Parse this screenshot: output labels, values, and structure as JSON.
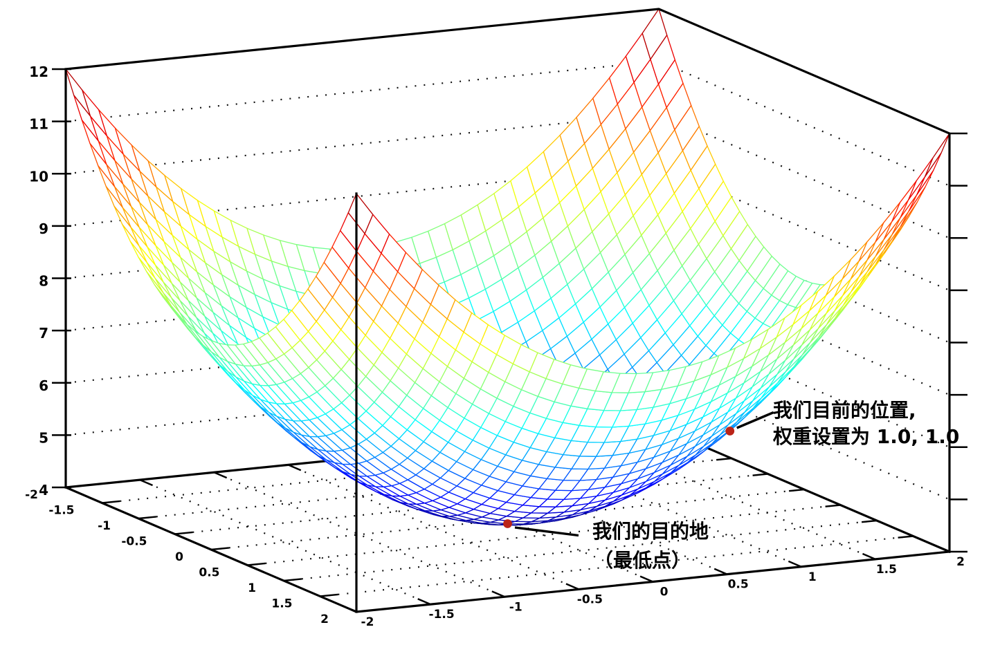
{
  "figure": {
    "background": "#ffffff"
  },
  "chart_data": {
    "type": "surface",
    "title": "",
    "surface": {
      "formula": "z = x^2 + y^2 + 4",
      "coefficients": {
        "x2": 1,
        "y2": 1,
        "const": 4
      }
    },
    "style": "wireframe-hidden3d",
    "colormap": "jet",
    "grid": "dotted",
    "mesh_divisions": 36,
    "x_range": [
      -2,
      2
    ],
    "y_range": [
      -2,
      2
    ],
    "z_range": [
      4,
      12
    ],
    "x_ticks": [
      -2,
      -1.5,
      -1,
      -0.5,
      0,
      0.5,
      1,
      1.5,
      2
    ],
    "x_tick_labels": [
      "-2",
      "-1.5",
      "-1",
      "-0.5",
      "0",
      "0.5",
      "1",
      "1.5",
      "2"
    ],
    "y_ticks": [
      -2,
      -1.5,
      -1,
      -0.5,
      0,
      0.5,
      1,
      1.5,
      2
    ],
    "y_tick_labels": [
      "-2",
      "-1.5",
      "-1",
      "-0.5",
      "0",
      "0.5",
      "1",
      "1.5",
      "2"
    ],
    "z_ticks": [
      4,
      5,
      6,
      7,
      8,
      9,
      10,
      11,
      12
    ],
    "z_tick_labels": [
      "4",
      "5",
      "6",
      "7",
      "8",
      "9",
      "10",
      "11",
      "12"
    ],
    "axis_color": "#000000",
    "marker_color": "#bb2418",
    "markers": [
      {
        "name": "current-position",
        "x": 1.0,
        "y": 1.0,
        "z": 6.0,
        "label_line1": "我们目前的位置,",
        "label_line2": "权重设置为 1.0, 1.0"
      },
      {
        "name": "destination",
        "x": 0.0,
        "y": 0.0,
        "z": 4.0,
        "label_line1": "我们的目的地",
        "label_line2": "（最低点）"
      }
    ]
  }
}
